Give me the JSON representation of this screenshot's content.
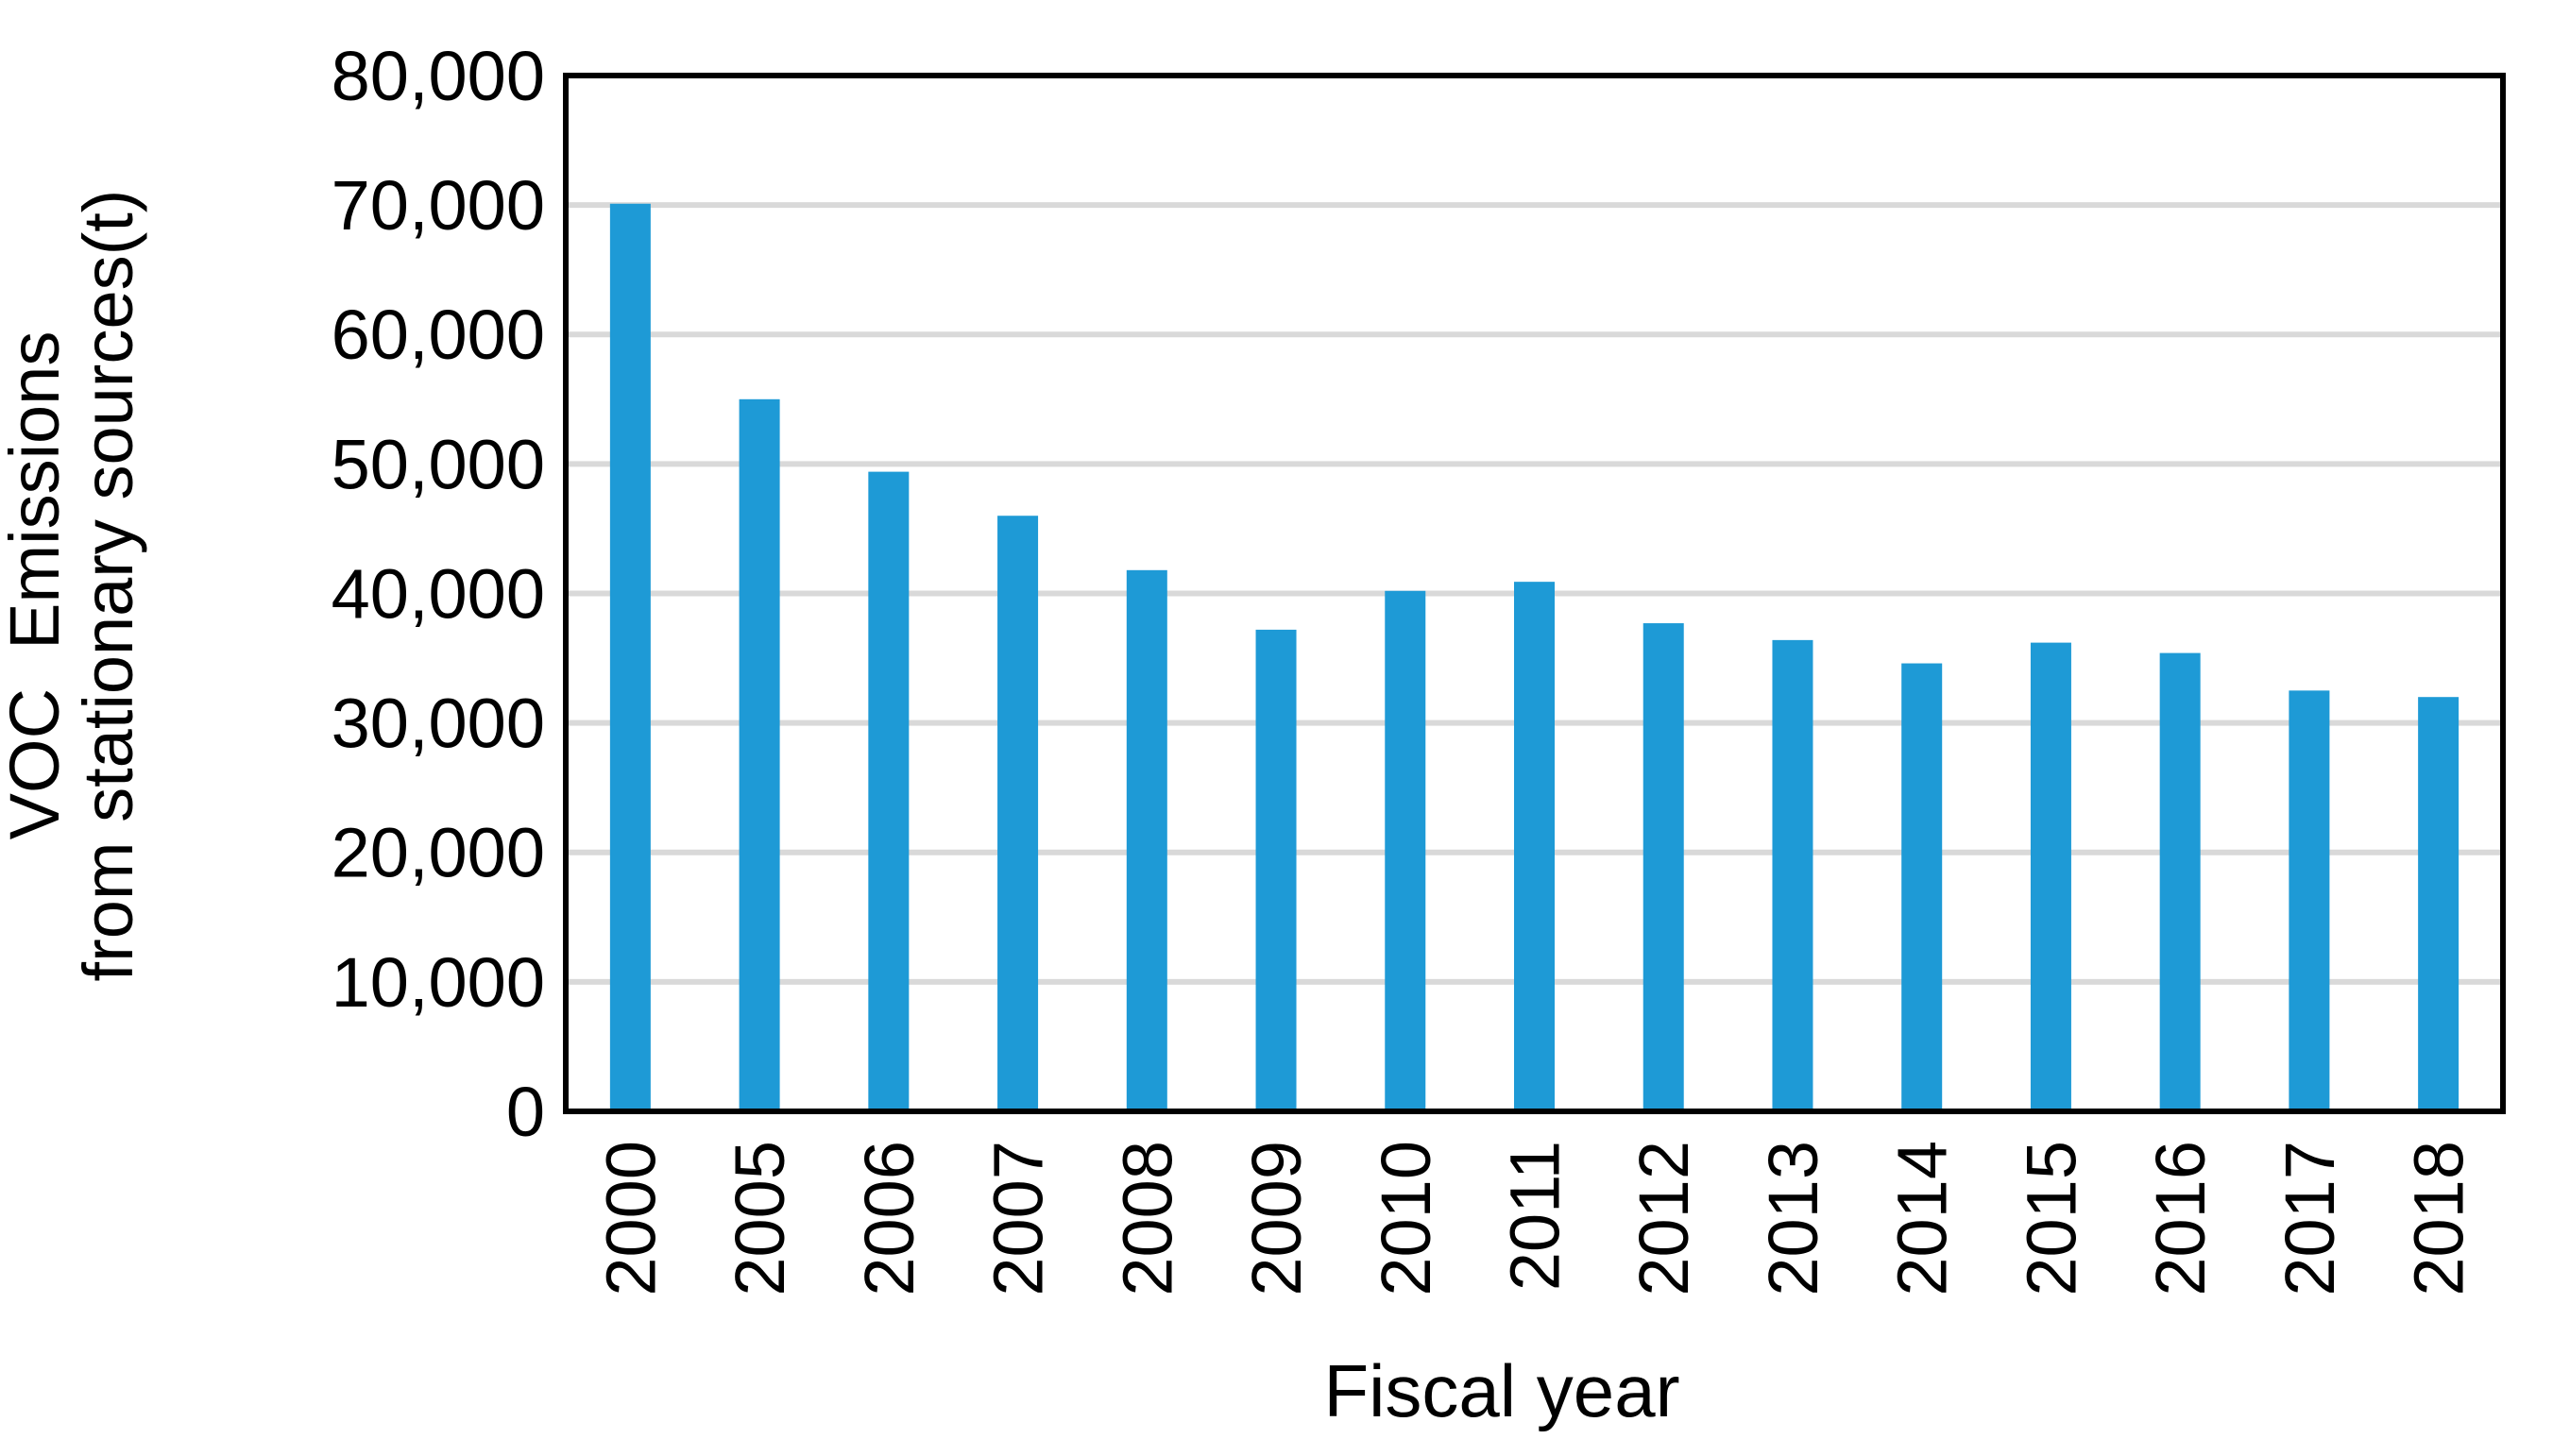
{
  "chart_data": {
    "type": "bar",
    "title": "",
    "xlabel": "Fiscal year",
    "ylabel_line1": "VOC  Emissions",
    "ylabel_line2": "from stationary sources(t)",
    "categories": [
      "2000",
      "2005",
      "2006",
      "2007",
      "2008",
      "2009",
      "2010",
      "2011",
      "2012",
      "2013",
      "2014",
      "2015",
      "2016",
      "2017",
      "2018"
    ],
    "values": [
      70100,
      55000,
      49400,
      46000,
      41800,
      37200,
      40200,
      40900,
      37700,
      36400,
      34600,
      36200,
      35400,
      32500,
      32000
    ],
    "ylim": [
      0,
      80000
    ],
    "ytick_interval": 10000,
    "y_tick_labels": [
      "0",
      "10,000",
      "20,000",
      "30,000",
      "40,000",
      "50,000",
      "60,000",
      "70,000",
      "80,000"
    ],
    "grid": true,
    "gridlines": "horizontal, drawn behind bars",
    "legend": false,
    "x_tick_rotation_degrees": -90,
    "colors": {
      "bar": "#1E9AD6",
      "gridline": "#D9D9D9",
      "axis": "#000000",
      "background": "#FFFFFF",
      "text": "#000000"
    }
  }
}
